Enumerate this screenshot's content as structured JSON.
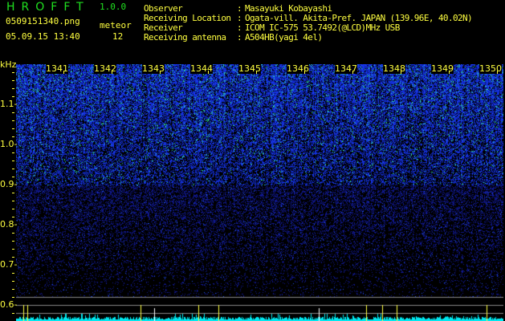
{
  "app": {
    "brand": "HROFFT",
    "version": "1.0.0"
  },
  "file": {
    "name": "0509151340.png",
    "datetime": "05.09.15 13:40"
  },
  "meteor": {
    "label": "meteor",
    "count": "12"
  },
  "info": [
    {
      "label": "Observer",
      "value": "Masayuki Kobayashi"
    },
    {
      "label": "Receiving Location",
      "value": "Ogata-vill. Akita-Pref. JAPAN (139.96E, 40.02N)"
    },
    {
      "label": "Receiver",
      "value": "ICOM IC-575 53.7492(@LCD)MHz USB"
    },
    {
      "label": "Receiving antenna",
      "value": "A504HB(yagi 4el)"
    }
  ],
  "axis": {
    "y_unit": "kHz",
    "y_labels": [
      "1.1",
      "1.0",
      "0.9",
      "0.8",
      "0.7",
      "0.6"
    ],
    "x_labels": [
      "1341",
      "1342",
      "1343",
      "1344",
      "1345",
      "1346",
      "1347",
      "1348",
      "1349",
      "1350"
    ]
  },
  "colors": {
    "text": "#ffff40",
    "brand": "#20e020",
    "histogram": "#00e8f0",
    "noise": "#1030e0"
  }
}
